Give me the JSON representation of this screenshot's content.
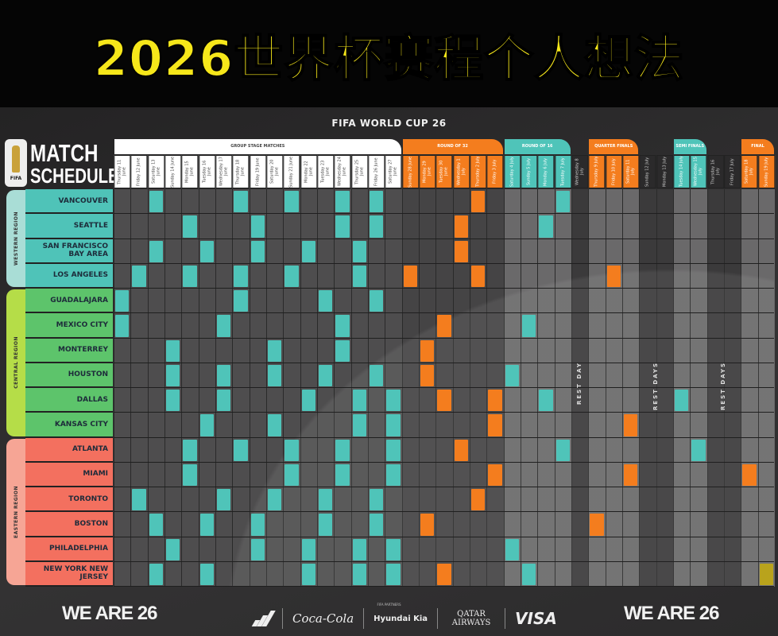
{
  "title": "2026世界杯赛程个人想法",
  "poster_title": "FIFA WORLD CUP 26",
  "logo": {
    "line1": "MATCH",
    "line2": "SCHEDULE",
    "badge": "FIFA",
    "badge_number": "26"
  },
  "colors": {
    "group": "#4fc4b9",
    "round_of_16": "#4fc4b9",
    "semi_final": "#4fc4b9",
    "round_of_32": "#f47d1e",
    "quarter_final": "#f47d1e",
    "third_place": "#f47d1e",
    "final": "#b9a31c",
    "western": "#4fc3b8",
    "central": "#5dc46b",
    "eastern": "#f3705f",
    "title_yellow": "#f6e71a"
  },
  "stages": [
    {
      "key": "group",
      "label": "GROUP STAGE MATCHES",
      "days": 17,
      "color": "#ffffff",
      "text": "#444444"
    },
    {
      "key": "round_of_32",
      "label": "ROUND OF 32",
      "days": 6,
      "color": "#f47d1e",
      "text": "#ffffff"
    },
    {
      "key": "round_of_16",
      "label": "ROUND OF 16",
      "days": 4,
      "color": "#4fc4b9",
      "text": "#ffffff"
    },
    {
      "key": "rest",
      "label": "",
      "days": 1
    },
    {
      "key": "quarter_final",
      "label": "QUARTER FINALS",
      "days": 3,
      "color": "#f47d1e",
      "text": "#ffffff"
    },
    {
      "key": "rest",
      "label": "",
      "days": 2
    },
    {
      "key": "semi_final",
      "label": "SEMI FINALS",
      "days": 2,
      "color": "#4fc4b9",
      "text": "#ffffff"
    },
    {
      "key": "rest",
      "label": "",
      "days": 2
    },
    {
      "key": "final",
      "label": "FINAL",
      "days": 2,
      "color": "#f47d1e",
      "text": "#ffffff"
    }
  ],
  "days": [
    {
      "weekday": "Thursday",
      "date": "11 June"
    },
    {
      "weekday": "Friday",
      "date": "12 June"
    },
    {
      "weekday": "Saturday",
      "date": "13 June"
    },
    {
      "weekday": "Sunday",
      "date": "14 June"
    },
    {
      "weekday": "Monday",
      "date": "15 June"
    },
    {
      "weekday": "Tuesday",
      "date": "16 June"
    },
    {
      "weekday": "Wednesday",
      "date": "17 June"
    },
    {
      "weekday": "Thursday",
      "date": "18 June"
    },
    {
      "weekday": "Friday",
      "date": "19 June"
    },
    {
      "weekday": "Saturday",
      "date": "20 June"
    },
    {
      "weekday": "Sunday",
      "date": "21 June"
    },
    {
      "weekday": "Monday",
      "date": "22 June"
    },
    {
      "weekday": "Tuesday",
      "date": "23 June"
    },
    {
      "weekday": "Wednesday",
      "date": "24 June"
    },
    {
      "weekday": "Thursday",
      "date": "25 June"
    },
    {
      "weekday": "Friday",
      "date": "26 June"
    },
    {
      "weekday": "Saturday",
      "date": "27 June"
    },
    {
      "weekday": "Sunday",
      "date": "28 June"
    },
    {
      "weekday": "Monday",
      "date": "29 June"
    },
    {
      "weekday": "Tuesday",
      "date": "30 June"
    },
    {
      "weekday": "Wednesday",
      "date": "1 July"
    },
    {
      "weekday": "Thursday",
      "date": "2 July"
    },
    {
      "weekday": "Friday",
      "date": "3 July"
    },
    {
      "weekday": "Saturday",
      "date": "4 July"
    },
    {
      "weekday": "Sunday",
      "date": "5 July"
    },
    {
      "weekday": "Monday",
      "date": "6 July"
    },
    {
      "weekday": "Tuesday",
      "date": "7 July"
    },
    {
      "weekday": "Wednesday",
      "date": "8 July"
    },
    {
      "weekday": "Thursday",
      "date": "9 July"
    },
    {
      "weekday": "Friday",
      "date": "10 July"
    },
    {
      "weekday": "Saturday",
      "date": "11 July"
    },
    {
      "weekday": "Sunday",
      "date": "12 July"
    },
    {
      "weekday": "Monday",
      "date": "13 July"
    },
    {
      "weekday": "Tuesday",
      "date": "14 July"
    },
    {
      "weekday": "Wednesday",
      "date": "15 July"
    },
    {
      "weekday": "Thursday",
      "date": "16 July"
    },
    {
      "weekday": "Friday",
      "date": "17 July"
    },
    {
      "weekday": "Saturday",
      "date": "18 July"
    },
    {
      "weekday": "Sunday",
      "date": "19 July"
    }
  ],
  "rest_labels": [
    {
      "label": "REST DAY",
      "dates": [
        "8 July"
      ]
    },
    {
      "label": "REST DAYS",
      "dates": [
        "12 July",
        "13 July"
      ]
    },
    {
      "label": "REST DAYS",
      "dates": [
        "16 July",
        "17 July"
      ]
    }
  ],
  "regions": [
    {
      "name": "WESTERN REGION",
      "color": "#a9ddd6",
      "city_color": "#4fc3b8",
      "cities": [
        {
          "name": "VANCOUVER",
          "matches": [
            "13 June",
            "18 June",
            "21 June",
            "24 June",
            "26 June",
            "2 July",
            "7 July"
          ]
        },
        {
          "name": "SEATTLE",
          "matches": [
            "15 June",
            "19 June",
            "24 June",
            "26 June",
            "1 July",
            "6 July"
          ]
        },
        {
          "name": "SAN FRANCISCO BAY AREA",
          "matches": [
            "13 June",
            "16 June",
            "19 June",
            "22 June",
            "25 June",
            "1 July"
          ]
        },
        {
          "name": "LOS ANGELES",
          "matches": [
            "12 June",
            "15 June",
            "18 June",
            "21 June",
            "25 June",
            "28 June",
            "2 July",
            "10 July"
          ]
        }
      ]
    },
    {
      "name": "CENTRAL REGION",
      "color": "#b5dd48",
      "city_color": "#5dc46b",
      "cities": [
        {
          "name": "GUADALAJARA",
          "matches": [
            "11 June",
            "18 June",
            "23 June",
            "26 June"
          ]
        },
        {
          "name": "MEXICO CITY",
          "matches": [
            "11 June",
            "17 June",
            "24 June",
            "30 June",
            "5 July"
          ]
        },
        {
          "name": "MONTERREY",
          "matches": [
            "14 June",
            "20 June",
            "24 June",
            "29 June"
          ]
        },
        {
          "name": "HOUSTON",
          "matches": [
            "14 June",
            "17 June",
            "20 June",
            "23 June",
            "26 June",
            "29 June",
            "4 July"
          ]
        },
        {
          "name": "DALLAS",
          "matches": [
            "14 June",
            "17 June",
            "22 June",
            "25 June",
            "27 June",
            "30 June",
            "3 July",
            "6 July",
            "14 July"
          ]
        },
        {
          "name": "KANSAS CITY",
          "matches": [
            "16 June",
            "20 June",
            "25 June",
            "27 June",
            "3 July",
            "11 July"
          ]
        }
      ]
    },
    {
      "name": "EASTERN REGION",
      "color": "#f6a595",
      "city_color": "#f3705f",
      "cities": [
        {
          "name": "ATLANTA",
          "matches": [
            "15 June",
            "18 June",
            "21 June",
            "24 June",
            "27 June",
            "1 July",
            "7 July",
            "15 July"
          ]
        },
        {
          "name": "MIAMI",
          "matches": [
            "15 June",
            "21 June",
            "24 June",
            "27 June",
            "3 July",
            "11 July",
            "18 July"
          ]
        },
        {
          "name": "TORONTO",
          "matches": [
            "12 June",
            "17 June",
            "20 June",
            "23 June",
            "26 June",
            "2 July"
          ]
        },
        {
          "name": "BOSTON",
          "matches": [
            "13 June",
            "16 June",
            "19 June",
            "23 June",
            "26 June",
            "29 June",
            "9 July"
          ]
        },
        {
          "name": "PHILADELPHIA",
          "matches": [
            "14 June",
            "19 June",
            "22 June",
            "25 June",
            "27 June",
            "4 July"
          ]
        },
        {
          "name": "NEW YORK NEW JERSEY",
          "matches": [
            "13 June",
            "16 June",
            "22 June",
            "25 June",
            "27 June",
            "30 June",
            "5 July",
            "19 July"
          ]
        }
      ]
    }
  ],
  "footer": {
    "brand_left": "WE ARE 26",
    "brand_right": "WE ARE 26",
    "sponsor_header": "FIFA PARTNERS",
    "sponsors": [
      "adidas",
      "Coca-Cola",
      "Hyundai Kia",
      "QATAR AIRWAYS",
      "VISA"
    ]
  }
}
